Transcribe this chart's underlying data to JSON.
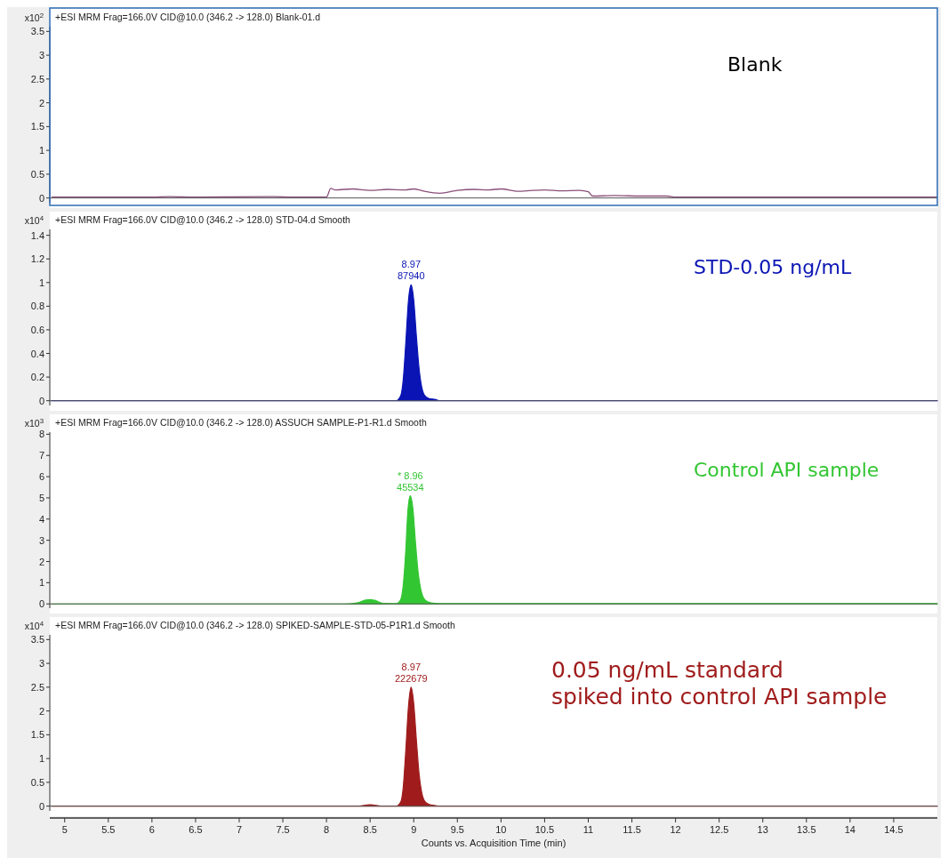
{
  "chart_data": [
    {
      "type": "line",
      "title": "+ESI MRM Frag=166.0V CID@10.0 (346.2 -> 128.0) Blank-01.d",
      "subtitle": "Blank",
      "ylabel": "x10$^{2}$",
      "xlim": [
        4.85,
        15.0
      ],
      "ylim": [
        -0.1,
        3.6
      ],
      "yticks": [
        0,
        0.5,
        1,
        1.5,
        2,
        2.5,
        3,
        3.5
      ],
      "tick_labels": "y",
      "series": [
        {
          "color": "#8b4f7a",
          "x": [
            4.85,
            6.0,
            6.2,
            6.5,
            7.4,
            7.6,
            8.0,
            8.05,
            8.1,
            8.3,
            8.5,
            8.7,
            8.9,
            9.0,
            9.1,
            9.3,
            9.5,
            9.7,
            9.85,
            10.0,
            10.2,
            10.3,
            10.5,
            10.7,
            10.9,
            11.0,
            11.05,
            11.3,
            11.6,
            11.9,
            12.0,
            15.0
          ],
          "values": [
            0.02,
            0.02,
            0.03,
            0.02,
            0.03,
            0.02,
            0.02,
            0.2,
            0.17,
            0.19,
            0.16,
            0.18,
            0.17,
            0.19,
            0.15,
            0.1,
            0.16,
            0.18,
            0.17,
            0.19,
            0.14,
            0.15,
            0.17,
            0.15,
            0.16,
            0.13,
            0.04,
            0.05,
            0.04,
            0.04,
            0.02,
            0.02
          ]
        }
      ]
    },
    {
      "type": "area",
      "title": "+ESI MRM Frag=166.0V CID@10.0 (346.2 -> 128.0) STD-04.d  Smooth",
      "subtitle": "STD-0.05 ng/mL",
      "ylabel": "x10$^{4}$",
      "xlim": [
        4.85,
        15.0
      ],
      "ylim": [
        -0.04,
        1.45
      ],
      "yticks": [
        0,
        0.2,
        0.4,
        0.6,
        0.8,
        1,
        1.2,
        1.4
      ],
      "tick_labels": "y",
      "annotations": [
        "8.97\n87940"
      ],
      "series": [
        {
          "color": "#0a14b4",
          "x": [
            4.85,
            8.8,
            8.85,
            8.88,
            8.91,
            8.94,
            8.97,
            9.0,
            9.03,
            9.06,
            9.09,
            9.12,
            9.17,
            9.25,
            9.3,
            15.0
          ],
          "values": [
            0,
            0,
            0.04,
            0.18,
            0.5,
            0.85,
            0.98,
            0.85,
            0.55,
            0.28,
            0.12,
            0.05,
            0.02,
            0.01,
            0,
            0
          ]
        }
      ]
    },
    {
      "type": "area",
      "title": "+ESI MRM Frag=166.0V CID@10.0 (346.2 -> 128.0) ASSUCH SAMPLE-P1-R1.d  Smooth",
      "subtitle": "Control API sample",
      "ylabel": "x10$^{3}$",
      "xlim": [
        4.85,
        15.0
      ],
      "ylim": [
        -0.2,
        8.1
      ],
      "yticks": [
        0,
        1,
        2,
        3,
        4,
        5,
        6,
        7,
        8
      ],
      "tick_labels": "y",
      "annotations": [
        "* 8.96\n45534"
      ],
      "series": [
        {
          "color": "#33c633",
          "x": [
            4.85,
            8.2,
            8.35,
            8.45,
            8.5,
            8.55,
            8.65,
            8.8,
            8.85,
            8.88,
            8.91,
            8.93,
            8.96,
            8.99,
            9.02,
            9.05,
            9.08,
            9.11,
            9.15,
            9.2,
            9.3,
            15.0
          ],
          "values": [
            0,
            0,
            0.05,
            0.18,
            0.2,
            0.17,
            0.03,
            0.02,
            0.2,
            0.9,
            2.6,
            4.2,
            5.1,
            4.5,
            2.9,
            1.5,
            0.7,
            0.3,
            0.12,
            0.05,
            0.02,
            0.02
          ]
        }
      ]
    },
    {
      "type": "area",
      "title": "+ESI MRM Frag=166.0V CID@10.0 (346.2 -> 128.0) SPIKED-SAMPLE-STD-05-P1R1.d  Smooth",
      "subtitle": "0.05 ng/mL standard\nspiked into control API sample",
      "ylabel": "x10$^{4}$",
      "xlabel": "Counts vs. Acquisition Time (min)",
      "xlim": [
        4.85,
        15.0
      ],
      "ylim": [
        -0.1,
        3.6
      ],
      "yticks": [
        0,
        0.5,
        1,
        1.5,
        2,
        2.5,
        3,
        3.5
      ],
      "xticks": [
        5,
        5.5,
        6,
        6.5,
        7,
        7.5,
        8,
        8.5,
        9,
        9.5,
        10,
        10.5,
        11,
        11.5,
        12,
        12.5,
        13,
        13.5,
        14,
        14.5
      ],
      "annotations": [
        "8.97\n222679"
      ],
      "series": [
        {
          "color": "#a01c1c",
          "x": [
            4.85,
            8.35,
            8.45,
            8.5,
            8.55,
            8.65,
            8.8,
            8.85,
            8.88,
            8.91,
            8.94,
            8.97,
            9.0,
            9.03,
            9.06,
            9.09,
            9.12,
            9.17,
            9.25,
            9.3,
            15.0
          ],
          "values": [
            0,
            0,
            0.02,
            0.03,
            0.02,
            0,
            0,
            0.08,
            0.4,
            1.2,
            2.1,
            2.5,
            2.15,
            1.4,
            0.7,
            0.3,
            0.12,
            0.04,
            0.01,
            0,
            0
          ]
        }
      ]
    }
  ]
}
